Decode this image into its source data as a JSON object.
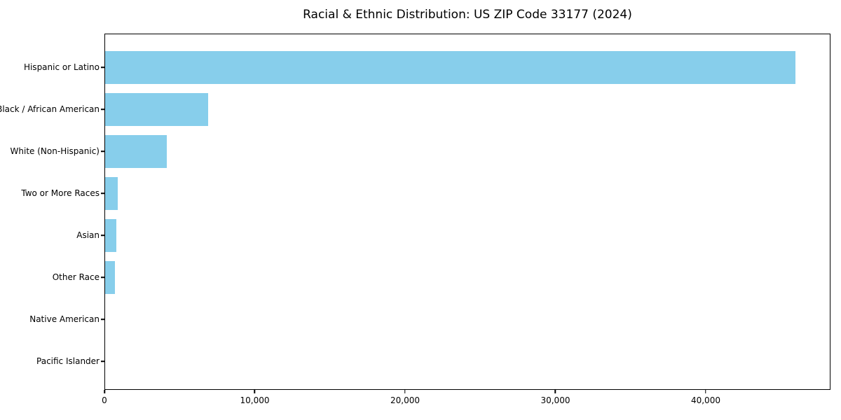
{
  "title": "Racial & Ethnic Distribution: US ZIP Code 33177 (2024)",
  "chart_data": {
    "type": "bar",
    "orientation": "horizontal",
    "title": "Racial & Ethnic Distribution: US ZIP Code 33177 (2024)",
    "categories": [
      "Hispanic or Latino",
      "Black / African American",
      "White (Non-Hispanic)",
      "Two or More Races",
      "Asian",
      "Other Race",
      "Native American",
      "Pacific Islander"
    ],
    "values": [
      46000,
      6850,
      4100,
      860,
      770,
      650,
      0,
      0
    ],
    "xlabel": "",
    "ylabel": "",
    "xlim": [
      0,
      48300
    ],
    "x_ticks": [
      0,
      10000,
      20000,
      30000,
      40000
    ],
    "x_tick_labels": [
      "0",
      "10,000",
      "20,000",
      "30,000",
      "40,000"
    ],
    "bar_color": "#87ceeb",
    "grid": false,
    "legend": null
  }
}
